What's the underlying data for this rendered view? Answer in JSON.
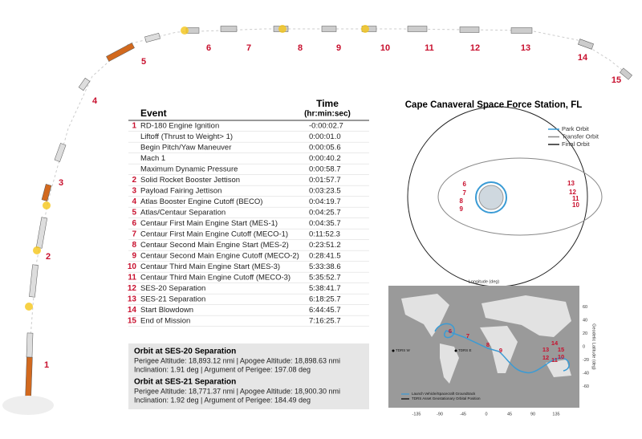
{
  "stages": [
    "1",
    "2",
    "3",
    "4",
    "5",
    "6",
    "7",
    "8",
    "9",
    "10",
    "11",
    "12",
    "13",
    "14",
    "15"
  ],
  "table": {
    "headers": [
      "Event",
      "Time",
      "(hr:min:sec)"
    ],
    "rows": [
      {
        "number": "1",
        "event": "RD-180 Engine Ignition",
        "time": "-0:00:02.7"
      },
      {
        "event": "Liftoff (Thrust to Weight> 1)",
        "time": "0:00:01.0"
      },
      {
        "event": "Begin Pitch/Yaw Maneuver",
        "time": "0:00:05.6"
      },
      {
        "event": "Mach 1",
        "time": "0:00:40.2"
      },
      {
        "event": "Maximum Dynamic Pressure",
        "time": "0:00:58.7"
      },
      {
        "number": "2",
        "event": "Solid Rocket Booster Jettison",
        "time": "0:01:57.7"
      },
      {
        "number": "3",
        "event": "Payload Fairing Jettison",
        "time": "0:03:23.5"
      },
      {
        "number": "4",
        "event": "Atlas Booster Engine Cutoff (BECO)",
        "time": "0:04:19.7"
      },
      {
        "number": "5",
        "event": "Atlas/Centaur Separation",
        "time": "0:04:25.7"
      },
      {
        "number": "6",
        "event": "Centaur First Main Engine Start (MES-1)",
        "time": "0:04:35.7"
      },
      {
        "number": "7",
        "event": "Centaur First Main Engine Cutoff (MECO-1)",
        "time": "0:11:52.3"
      },
      {
        "number": "8",
        "event": "Centaur Second Main Engine Start (MES-2)",
        "time": "0:23:51.2"
      },
      {
        "number": "9",
        "event": "Centaur Second Main Engine Cutoff (MECO-2)",
        "time": "0:28:41.5"
      },
      {
        "number": "10",
        "event": "Centaur Third Main Engine Start (MES-3)",
        "time": "5:33:38.6"
      },
      {
        "number": "11",
        "event": "Centaur Third Main Engine Cutoff (MECO-3)",
        "time": "5:35:52.7"
      },
      {
        "number": "12",
        "event": "SES-20 Separation",
        "time": "5:38:41.7"
      },
      {
        "number": "13",
        "event": "SES-21 Separation",
        "time": "6:18:25.7"
      },
      {
        "number": "14",
        "event": "Start Blowdown",
        "time": "6:44:45.7"
      },
      {
        "number": "15",
        "event": "End of Mission",
        "time": "7:16:25.7"
      }
    ]
  },
  "orbits": [
    {
      "title": "Orbit at SES-20 Separation",
      "lines": [
        "Perigee Altitude: 18,893.12 nmi | Apogee Altitude: 18,898.63 nmi",
        "Inclination: 1.91 deg | Argument of Perigee: 197.08 deg"
      ]
    },
    {
      "title": "Orbit at SES-21 Separation",
      "lines": [
        "Perigee Altitude: 18,771.37 nmi | Apogee Altitude: 18,900.30 nmi",
        "Inclination: 1.92 deg | Argument of Perigee: 184.49 deg"
      ]
    }
  ],
  "orbit_diagram": {
    "title": "Cape Canaveral Space Force Station, FL",
    "legend": [
      {
        "name": "Park Orbit",
        "color": "#3a9bd5"
      },
      {
        "name": "Transfer Orbit",
        "color": "#888888"
      },
      {
        "name": "Final Orbit",
        "color": "#222222"
      }
    ],
    "labels": [
      "6",
      "7",
      "8",
      "9",
      "13",
      "12",
      "11",
      "10"
    ]
  },
  "map": {
    "xlabel": "Longitude (deg)",
    "ylabel": "Geodetic Latitude (deg)",
    "xticks": [
      -135,
      -90,
      -45,
      0,
      45,
      90,
      135
    ],
    "yticks": [
      60,
      40,
      20,
      0,
      -20,
      -40,
      -60
    ],
    "legend": [
      "Launch Vehicle/Spacecraft Groundtrack",
      "TDRS Asset Geostationary Orbital Position"
    ],
    "assets": [
      "TDRS W",
      "TDRS E"
    ],
    "labels": [
      "6",
      "7",
      "8",
      "9",
      "13",
      "14",
      "15",
      "12",
      "11",
      "10"
    ]
  }
}
